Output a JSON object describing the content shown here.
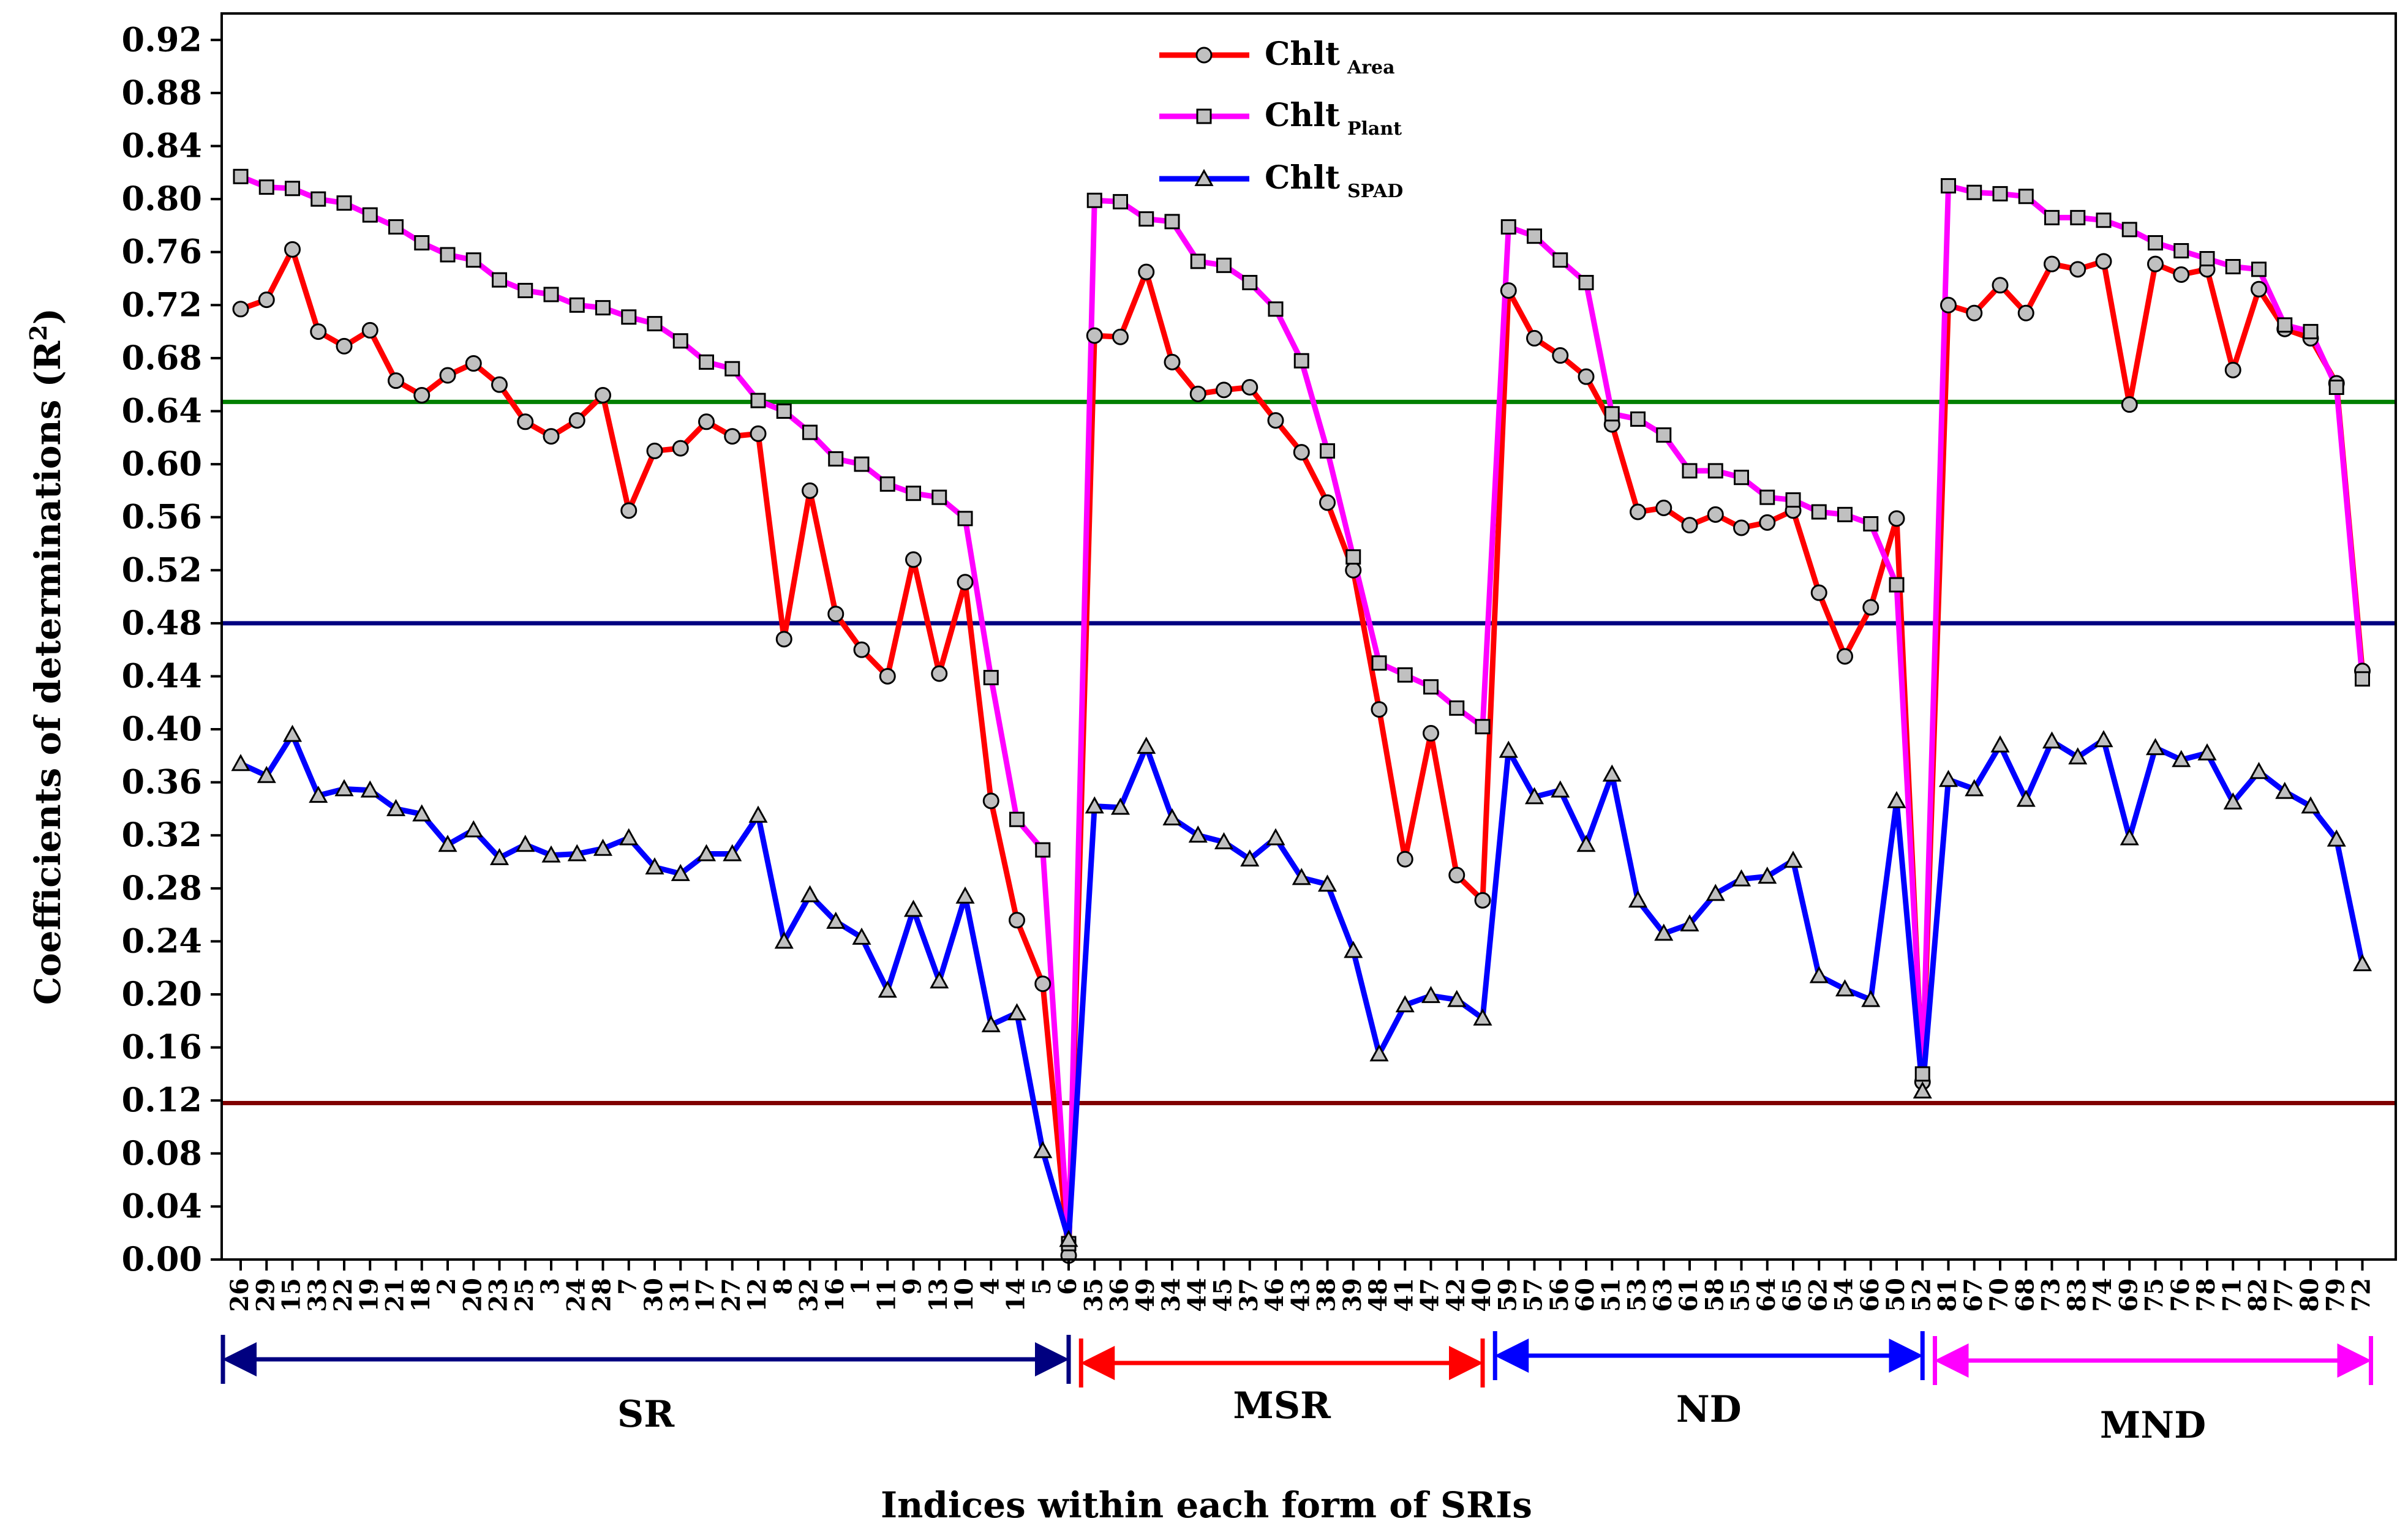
{
  "chart_data": {
    "type": "line",
    "title": "",
    "xlabel": "Indices within each form of SRIs",
    "ylabel_main": "Coefficients of determinations (R",
    "ylabel_sup": "2",
    "ylabel_end": ")",
    "ylim": [
      0,
      0.94
    ],
    "yticks": [
      "0.00",
      "0.04",
      "0.08",
      "0.12",
      "0.16",
      "0.20",
      "0.24",
      "0.28",
      "0.32",
      "0.36",
      "0.40",
      "0.44",
      "0.48",
      "0.52",
      "0.56",
      "0.60",
      "0.64",
      "0.68",
      "0.72",
      "0.76",
      "0.80",
      "0.84",
      "0.88",
      "0.92"
    ],
    "categories": [
      "26",
      "29",
      "15",
      "33",
      "22",
      "19",
      "21",
      "18",
      "2",
      "20",
      "23",
      "25",
      "3",
      "24",
      "28",
      "7",
      "30",
      "31",
      "17",
      "27",
      "12",
      "8",
      "32",
      "16",
      "1",
      "11",
      "9",
      "13",
      "10",
      "4",
      "14",
      "5",
      "6",
      "35",
      "36",
      "49",
      "34",
      "44",
      "45",
      "37",
      "46",
      "43",
      "38",
      "39",
      "48",
      "41",
      "47",
      "42",
      "40",
      "59",
      "57",
      "56",
      "60",
      "51",
      "53",
      "63",
      "61",
      "58",
      "55",
      "64",
      "65",
      "62",
      "54",
      "66",
      "50",
      "52",
      "81",
      "67",
      "70",
      "68",
      "73",
      "83",
      "74",
      "69",
      "75",
      "76",
      "78",
      "71",
      "82",
      "77",
      "80",
      "79",
      "72"
    ],
    "series": [
      {
        "name": "Chlt",
        "sub": "Area",
        "color": "#ff0000",
        "marker": "circle",
        "values": [
          0.717,
          0.724,
          0.762,
          0.7,
          0.689,
          0.701,
          0.663,
          0.652,
          0.667,
          0.676,
          0.66,
          0.632,
          0.621,
          0.633,
          0.652,
          0.565,
          0.61,
          0.612,
          0.632,
          0.621,
          0.623,
          0.468,
          0.58,
          0.487,
          0.46,
          0.44,
          0.528,
          0.442,
          0.511,
          0.346,
          0.256,
          0.208,
          0.003,
          0.697,
          0.696,
          0.745,
          0.677,
          0.653,
          0.656,
          0.658,
          0.633,
          0.609,
          0.571,
          0.52,
          0.415,
          0.302,
          0.397,
          0.29,
          0.271,
          0.731,
          0.695,
          0.682,
          0.666,
          0.63,
          0.564,
          0.567,
          0.554,
          0.562,
          0.552,
          0.556,
          0.565,
          0.503,
          0.455,
          0.492,
          0.559,
          0.134,
          0.72,
          0.714,
          0.735,
          0.714,
          0.751,
          0.747,
          0.753,
          0.645,
          0.751,
          0.743,
          0.747,
          0.671,
          0.732,
          0.702,
          0.695,
          0.661,
          0.444
        ]
      },
      {
        "name": "Chlt",
        "sub": "Plant",
        "color": "#ff00ff",
        "marker": "square",
        "values": [
          0.817,
          0.809,
          0.808,
          0.8,
          0.797,
          0.788,
          0.779,
          0.767,
          0.758,
          0.754,
          0.739,
          0.731,
          0.728,
          0.72,
          0.718,
          0.711,
          0.706,
          0.693,
          0.677,
          0.672,
          0.648,
          0.64,
          0.624,
          0.604,
          0.6,
          0.585,
          0.578,
          0.575,
          0.559,
          0.439,
          0.332,
          0.309,
          0.012,
          0.799,
          0.798,
          0.785,
          0.783,
          0.753,
          0.75,
          0.737,
          0.717,
          0.678,
          0.61,
          0.53,
          0.45,
          0.441,
          0.432,
          0.416,
          0.402,
          0.779,
          0.772,
          0.754,
          0.737,
          0.638,
          0.634,
          0.622,
          0.595,
          0.595,
          0.59,
          0.575,
          0.573,
          0.564,
          0.562,
          0.555,
          0.509,
          0.14,
          0.81,
          0.805,
          0.804,
          0.802,
          0.786,
          0.786,
          0.784,
          0.777,
          0.767,
          0.761,
          0.755,
          0.749,
          0.747,
          0.705,
          0.7,
          0.658,
          0.438
        ]
      },
      {
        "name": "Chlt",
        "sub": "SPAD",
        "color": "#0000ff",
        "marker": "triangle",
        "values": [
          0.374,
          0.365,
          0.396,
          0.35,
          0.355,
          0.354,
          0.34,
          0.336,
          0.313,
          0.324,
          0.303,
          0.313,
          0.305,
          0.306,
          0.31,
          0.318,
          0.296,
          0.291,
          0.306,
          0.306,
          0.335,
          0.24,
          0.275,
          0.255,
          0.243,
          0.203,
          0.264,
          0.21,
          0.274,
          0.177,
          0.186,
          0.082,
          0.015,
          0.342,
          0.341,
          0.387,
          0.333,
          0.32,
          0.315,
          0.302,
          0.318,
          0.288,
          0.283,
          0.233,
          0.155,
          0.192,
          0.199,
          0.196,
          0.182,
          0.384,
          0.349,
          0.354,
          0.313,
          0.366,
          0.271,
          0.246,
          0.253,
          0.276,
          0.287,
          0.289,
          0.301,
          0.214,
          0.204,
          0.196,
          0.346,
          0.127,
          0.362,
          0.355,
          0.388,
          0.347,
          0.391,
          0.379,
          0.392,
          0.318,
          0.386,
          0.377,
          0.382,
          0.345,
          0.368,
          0.353,
          0.342,
          0.317,
          0.223
        ]
      }
    ],
    "reference_lines": [
      {
        "value": 0.647,
        "color": "#008000"
      },
      {
        "value": 0.48,
        "color": "#000080"
      },
      {
        "value": 0.118,
        "color": "#800000"
      }
    ],
    "groups": [
      {
        "label": "SR",
        "from": "26",
        "to": "6",
        "color": "#000080"
      },
      {
        "label": "MSR",
        "from": "35",
        "to": "40",
        "color": "#ff0000"
      },
      {
        "label": "ND",
        "from": "59",
        "to": "52",
        "color": "#0000ff"
      },
      {
        "label": "MND",
        "from": "81",
        "to": "72",
        "color": "#ff00ff"
      }
    ]
  }
}
